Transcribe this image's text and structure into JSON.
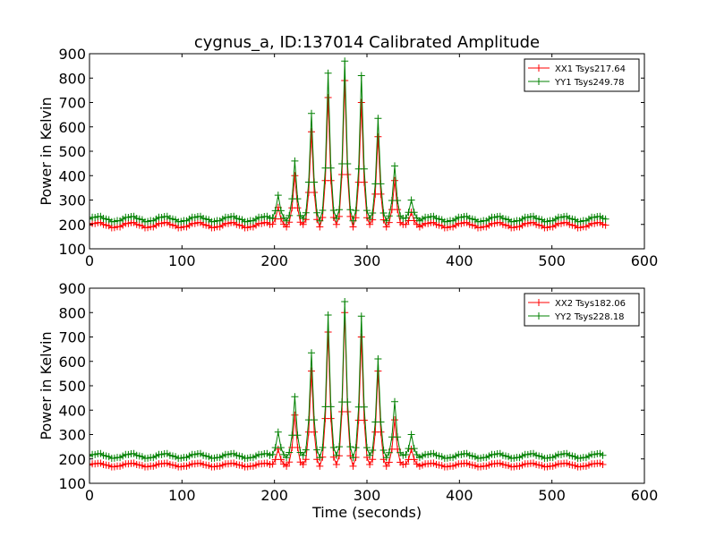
{
  "figure_title": "cygnus_a, ID:137014 Calibrated Amplitude",
  "colors": {
    "xx": "#ff0000",
    "yy": "#008000",
    "axes": "#000000",
    "background": "#ffffff"
  },
  "chart_data": [
    {
      "type": "line",
      "title": "cygnus_a, ID:137014 Calibrated Amplitude",
      "xlabel": "",
      "ylabel": "Power in Kelvin",
      "xlim": [
        0,
        600
      ],
      "ylim": [
        100,
        900
      ],
      "xticks": [
        0,
        100,
        200,
        300,
        400,
        500,
        600
      ],
      "yticks": [
        100,
        200,
        300,
        400,
        500,
        600,
        700,
        800,
        900
      ],
      "grid": false,
      "legend_position": "top-right",
      "marker": "+",
      "sample_interval_s": 3,
      "series": [
        {
          "name": "XX1 Tsys217.64",
          "color": "#ff0000",
          "baseline": 197,
          "ripple_amplitude": 10,
          "ripple_period_s": 36,
          "x_end": 558,
          "peaks": [
            {
              "t": 204,
              "value": 270
            },
            {
              "t": 222,
              "value": 400
            },
            {
              "t": 240,
              "value": 580
            },
            {
              "t": 258,
              "value": 720
            },
            {
              "t": 276,
              "value": 790
            },
            {
              "t": 294,
              "value": 700
            },
            {
              "t": 312,
              "value": 560
            },
            {
              "t": 330,
              "value": 380
            },
            {
              "t": 348,
              "value": 250
            }
          ]
        },
        {
          "name": "YY1 Tsys249.78",
          "color": "#008000",
          "baseline": 222,
          "ripple_amplitude": 10,
          "ripple_period_s": 36,
          "x_end": 558,
          "peaks": [
            {
              "t": 204,
              "value": 320
            },
            {
              "t": 222,
              "value": 460
            },
            {
              "t": 240,
              "value": 655
            },
            {
              "t": 258,
              "value": 820
            },
            {
              "t": 276,
              "value": 870
            },
            {
              "t": 294,
              "value": 810
            },
            {
              "t": 312,
              "value": 635
            },
            {
              "t": 330,
              "value": 440
            },
            {
              "t": 348,
              "value": 300
            }
          ]
        }
      ]
    },
    {
      "type": "line",
      "title": "",
      "xlabel": "Time (seconds)",
      "ylabel": "Power in Kelvin",
      "xlim": [
        0,
        600
      ],
      "ylim": [
        100,
        900
      ],
      "xticks": [
        0,
        100,
        200,
        300,
        400,
        500,
        600
      ],
      "yticks": [
        100,
        200,
        300,
        400,
        500,
        600,
        700,
        800,
        900
      ],
      "grid": false,
      "legend_position": "top-right",
      "marker": "+",
      "sample_interval_s": 3,
      "series": [
        {
          "name": "XX2 Tsys182.06",
          "color": "#ff0000",
          "baseline": 175,
          "ripple_amplitude": 7,
          "ripple_period_s": 36,
          "x_end": 555,
          "peaks": [
            {
              "t": 204,
              "value": 240
            },
            {
              "t": 222,
              "value": 380
            },
            {
              "t": 240,
              "value": 560
            },
            {
              "t": 258,
              "value": 720
            },
            {
              "t": 276,
              "value": 800
            },
            {
              "t": 294,
              "value": 700
            },
            {
              "t": 312,
              "value": 560
            },
            {
              "t": 330,
              "value": 360
            },
            {
              "t": 348,
              "value": 240
            }
          ]
        },
        {
          "name": "YY2 Tsys228.18",
          "color": "#008000",
          "baseline": 212,
          "ripple_amplitude": 9,
          "ripple_period_s": 36,
          "x_end": 555,
          "peaks": [
            {
              "t": 204,
              "value": 310
            },
            {
              "t": 222,
              "value": 455
            },
            {
              "t": 240,
              "value": 635
            },
            {
              "t": 258,
              "value": 790
            },
            {
              "t": 276,
              "value": 845
            },
            {
              "t": 294,
              "value": 785
            },
            {
              "t": 312,
              "value": 610
            },
            {
              "t": 330,
              "value": 435
            },
            {
              "t": 348,
              "value": 300
            }
          ]
        }
      ]
    }
  ]
}
